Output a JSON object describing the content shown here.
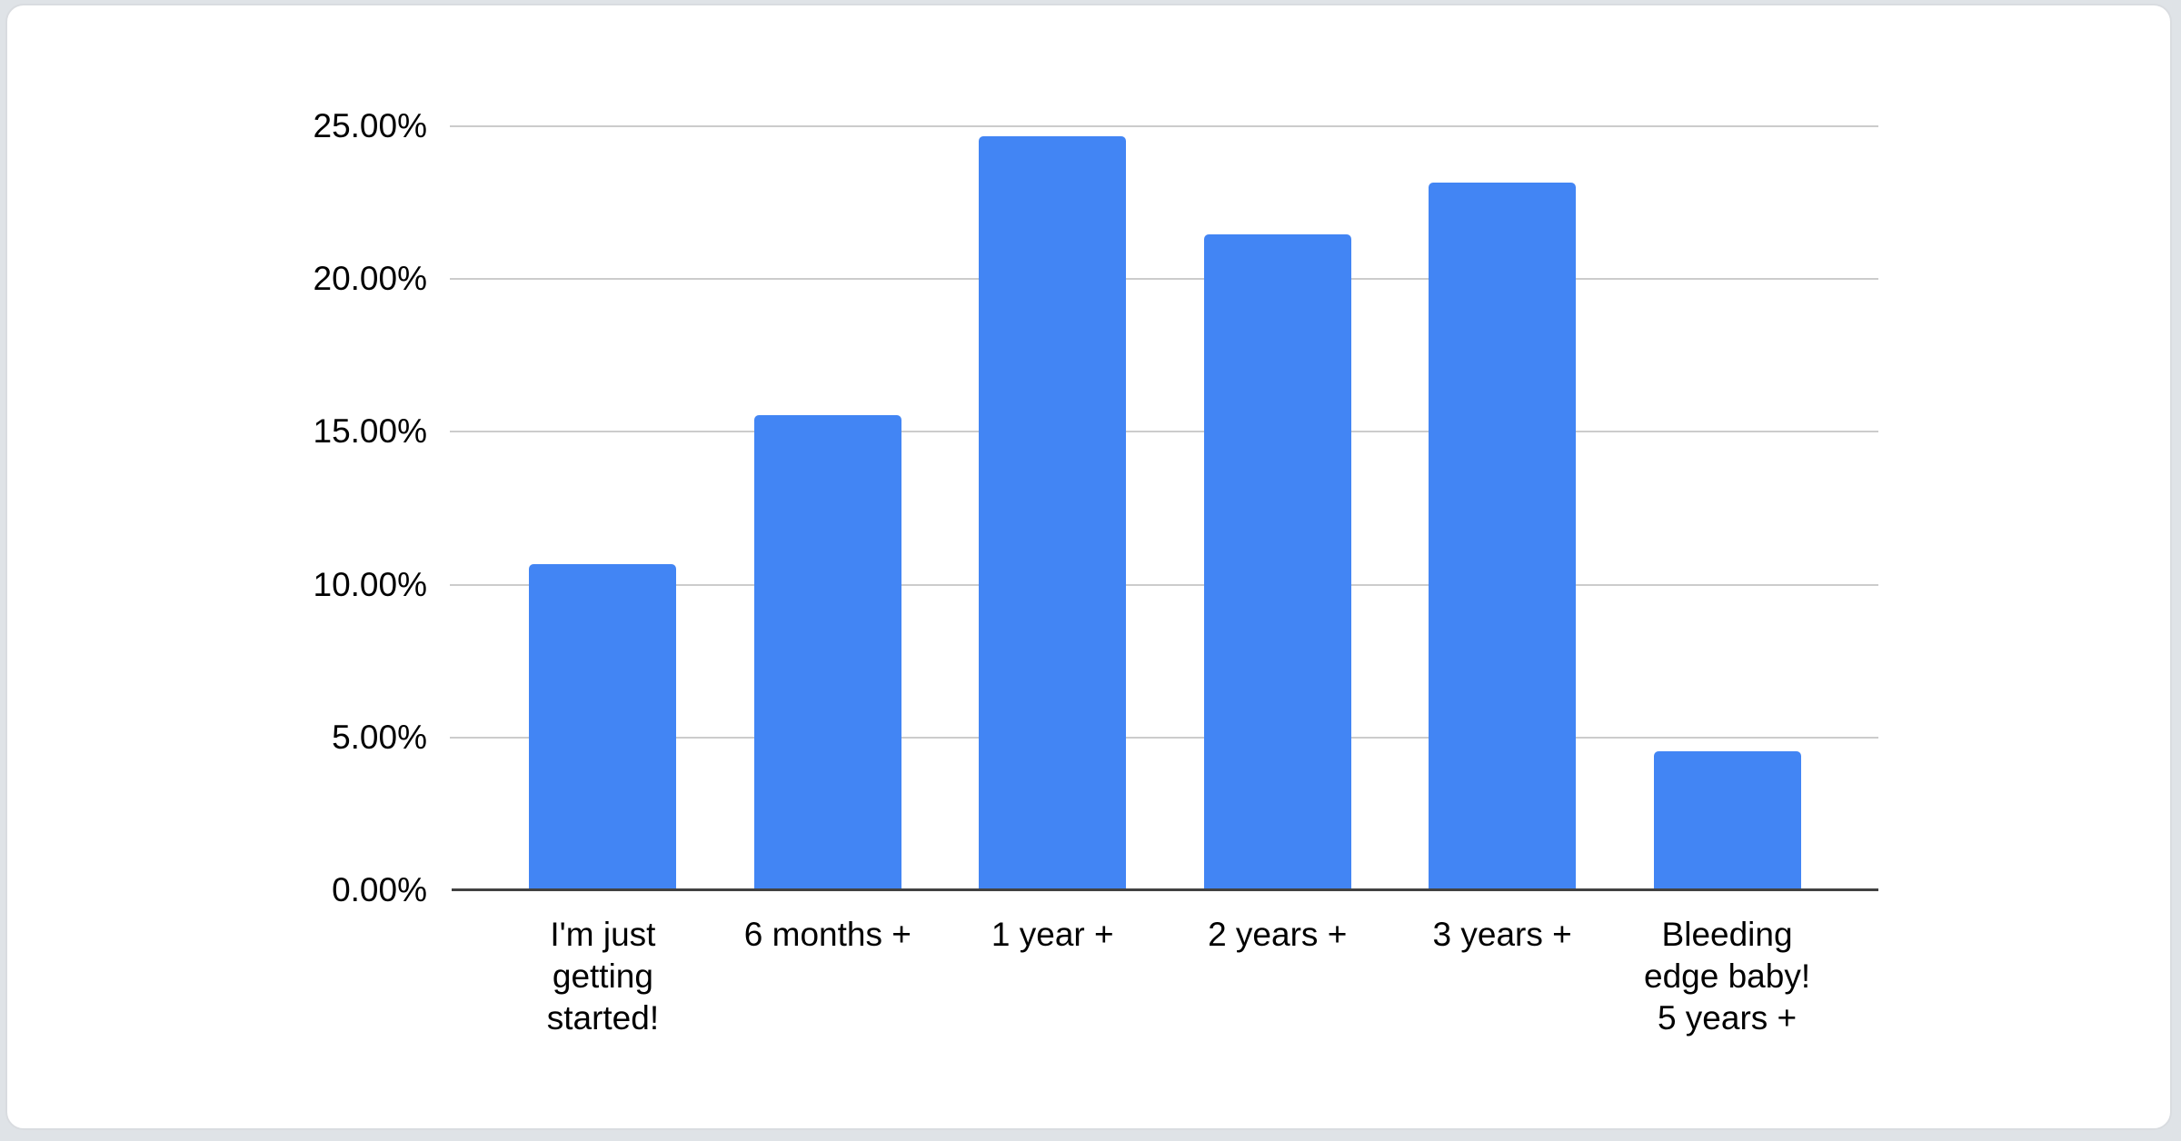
{
  "page": {
    "background_color": "#dfe3e7",
    "card_background": "#ffffff",
    "card_border_color": "#d9dce0"
  },
  "chart_data": {
    "type": "bar",
    "title": "",
    "categories": [
      {
        "label": "I'm just getting started!",
        "lines": [
          "I'm just",
          "getting",
          "started!"
        ]
      },
      {
        "label": "6 months +",
        "lines": [
          "6 months +"
        ]
      },
      {
        "label": "1 year +",
        "lines": [
          "1 year +"
        ]
      },
      {
        "label": "2 years +",
        "lines": [
          "2 years +"
        ]
      },
      {
        "label": "3 years +",
        "lines": [
          "3 years +"
        ]
      },
      {
        "label": "Bleeding edge baby! 5 years +",
        "lines": [
          "Bleeding",
          "edge baby!",
          "5 years +"
        ]
      }
    ],
    "values": [
      10.6,
      15.5,
      24.6,
      21.4,
      23.1,
      4.5
    ],
    "value_unit": "%",
    "yticks": [
      "0.00%",
      "5.00%",
      "10.00%",
      "15.00%",
      "20.00%",
      "25.00%"
    ],
    "ylim": [
      0,
      25
    ],
    "tick_step": 5,
    "grid": true,
    "legend": "none",
    "xlabel": "",
    "ylabel": "",
    "bar_color": "#4285f4",
    "gridline_color": "#cccccc",
    "axis_line_color": "#424242",
    "text_color": "#000000"
  }
}
